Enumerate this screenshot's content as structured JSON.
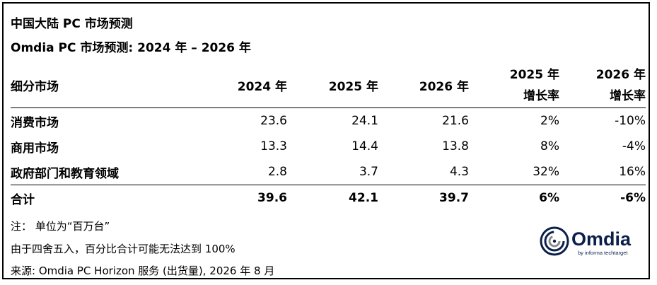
{
  "header": {
    "title": "中国大陆 PC 市场预测",
    "subtitle": "Omdia PC 市场预测: 2024 年 – 2026 年"
  },
  "table": {
    "columns": {
      "category": "细分市场",
      "y2024": "2024 年",
      "y2025": "2025 年",
      "y2026": "2026 年",
      "g2025_line1": "2025 年",
      "g2025_line2": "增长率",
      "g2026_line1": "2026 年",
      "g2026_line2": "增长率"
    },
    "rows": [
      {
        "category": "消费市场",
        "y2024": "23.6",
        "y2025": "24.1",
        "y2026": "21.6",
        "g2025": "2%",
        "g2026": "-10%"
      },
      {
        "category": "商用市场",
        "y2024": "13.3",
        "y2025": "14.4",
        "y2026": "13.8",
        "g2025": "8%",
        "g2026": "-4%"
      },
      {
        "category": "政府部门和教育领域",
        "y2024": "2.8",
        "y2025": "3.7",
        "y2026": "4.3",
        "g2025": "32%",
        "g2026": "16%"
      }
    ],
    "total": {
      "category": "合计",
      "y2024": "39.6",
      "y2025": "42.1",
      "y2026": "39.7",
      "g2025": "6%",
      "g2026": "-6%"
    }
  },
  "footnotes": {
    "note": "注：  单位为“百万台”",
    "rounding": "由于四舍五入，百分比合计可能无法达到 100%",
    "source": "来源: Omdia PC Horizon 服务 (出货量), 2026 年 8 月"
  },
  "logo": {
    "name": "Omdia",
    "tagline": "by informa techtarget"
  },
  "colors": {
    "text": "#000000",
    "logo_navy": "#0b1f4b",
    "logo_grey": "#8c8c8c"
  },
  "chart_data": {
    "type": "table",
    "title": "中国大陆 PC 市场预测",
    "subtitle": "Omdia PC 市场预测: 2024 年 – 2026 年",
    "columns": [
      "细分市场",
      "2024 年",
      "2025 年",
      "2026 年",
      "2025 年 增长率",
      "2026 年 增长率"
    ],
    "rows": [
      [
        "消费市场",
        23.6,
        24.1,
        21.6,
        "2%",
        "-10%"
      ],
      [
        "商用市场",
        13.3,
        14.4,
        13.8,
        "8%",
        "-4%"
      ],
      [
        "政府部门和教育领域",
        2.8,
        3.7,
        4.3,
        "32%",
        "16%"
      ],
      [
        "合计",
        39.6,
        42.1,
        39.7,
        "6%",
        "-6%"
      ]
    ],
    "unit": "百万台"
  }
}
